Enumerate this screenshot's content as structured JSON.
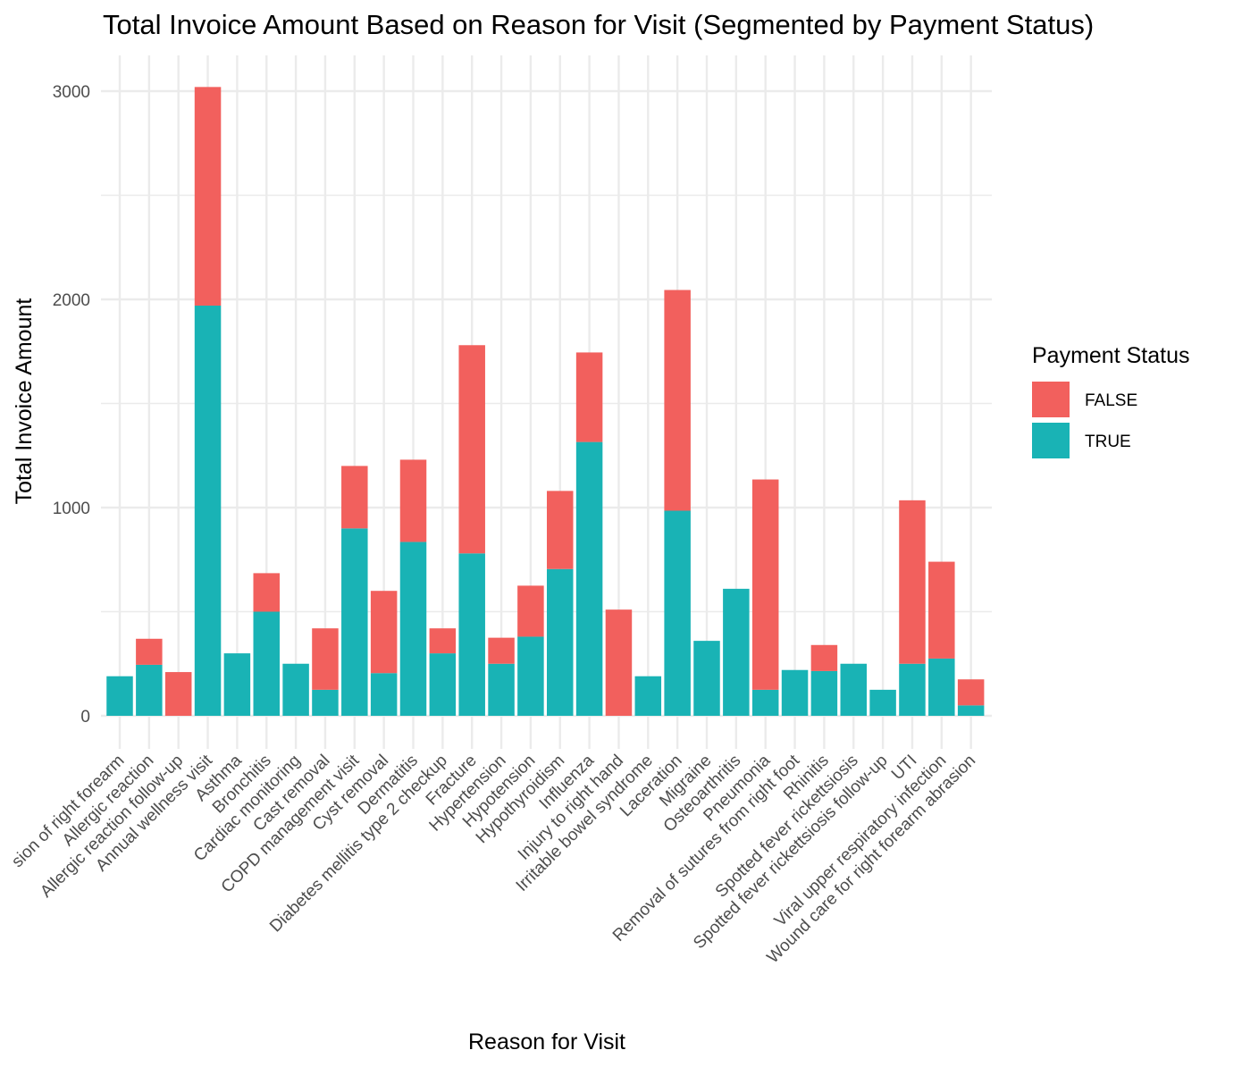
{
  "chart_data": {
    "type": "bar",
    "stacked": true,
    "title": "Total Invoice Amount Based on Reason for Visit (Segmented by Payment Status)",
    "xlabel": "Reason for Visit",
    "ylabel": "Total Invoice Amount",
    "ylim": [
      0,
      3150
    ],
    "yticks": [
      "0",
      "1000",
      "2000",
      "3000"
    ],
    "grid": true,
    "legend": {
      "title": "Payment Status",
      "position": "right"
    },
    "categories": [
      "sion of right forearm",
      "Allergic reaction",
      "Allergic reaction follow-up",
      "Annual wellness visit",
      "Asthma",
      "Bronchitis",
      "Cardiac monitoring",
      "Cast removal",
      "COPD management visit",
      "Cyst removal",
      "Dermatitis",
      "Diabetes mellitis type 2 checkup",
      "Fracture",
      "Hypertension",
      "Hypotension",
      "Hypothyroidism",
      "Influenza",
      "Injury to right hand",
      "Irritable bowel syndrome",
      "Laceration",
      "Migraine",
      "Osteoarthritis",
      "Pneumonia",
      "Removal of sutures from right foot",
      "Rhinitis",
      "Spotted fever rickettsiosis",
      "Spotted fever rickettsiosis follow-up",
      "UTI",
      "Viral upper respiratory infection",
      "Wound care for right forearm abrasion"
    ],
    "series": [
      {
        "name": "TRUE",
        "color": "#19b3b5",
        "values": [
          190,
          245,
          0,
          1970,
          300,
          500,
          250,
          125,
          900,
          205,
          835,
          300,
          780,
          250,
          380,
          705,
          1315,
          0,
          190,
          985,
          360,
          610,
          125,
          220,
          215,
          250,
          125,
          250,
          275,
          50
        ]
      },
      {
        "name": "FALSE",
        "color": "#f2605d",
        "values": [
          0,
          125,
          210,
          1050,
          0,
          185,
          0,
          295,
          300,
          395,
          395,
          120,
          1000,
          125,
          245,
          375,
          430,
          510,
          0,
          1060,
          0,
          0,
          1010,
          0,
          125,
          0,
          0,
          785,
          465,
          125
        ]
      }
    ]
  }
}
